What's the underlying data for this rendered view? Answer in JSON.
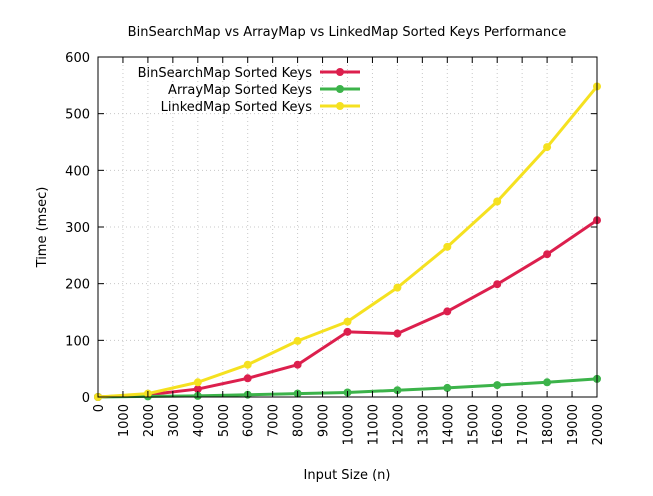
{
  "chart_data": {
    "type": "line",
    "title": "BinSearchMap vs ArrayMap vs LinkedMap Sorted Keys Performance",
    "xlabel": "Input Size (n)",
    "ylabel": "Time (msec)",
    "xlim": [
      0,
      20000
    ],
    "ylim": [
      0,
      600
    ],
    "xticks": [
      0,
      1000,
      2000,
      3000,
      4000,
      5000,
      6000,
      7000,
      8000,
      9000,
      10000,
      11000,
      12000,
      13000,
      14000,
      15000,
      16000,
      17000,
      18000,
      19000,
      20000
    ],
    "yticks": [
      0,
      100,
      200,
      300,
      400,
      500,
      600
    ],
    "grid": true,
    "legend_position": "top-left",
    "x": [
      0,
      2000,
      4000,
      6000,
      8000,
      10000,
      12000,
      14000,
      16000,
      18000,
      20000
    ],
    "series": [
      {
        "name": "BinSearchMap Sorted Keys",
        "color": "#dc1f4d",
        "values": [
          0,
          4,
          14,
          33,
          57,
          115,
          112,
          151,
          199,
          252,
          312
        ]
      },
      {
        "name": "ArrayMap Sorted Keys",
        "color": "#3cb34a",
        "values": [
          0,
          1,
          2,
          4,
          6,
          8,
          12,
          16,
          21,
          26,
          32
        ]
      },
      {
        "name": "LinkedMap Sorted Keys",
        "color": "#f5e120",
        "values": [
          0,
          6,
          26,
          57,
          99,
          133,
          193,
          265,
          345,
          441,
          548
        ]
      }
    ]
  }
}
